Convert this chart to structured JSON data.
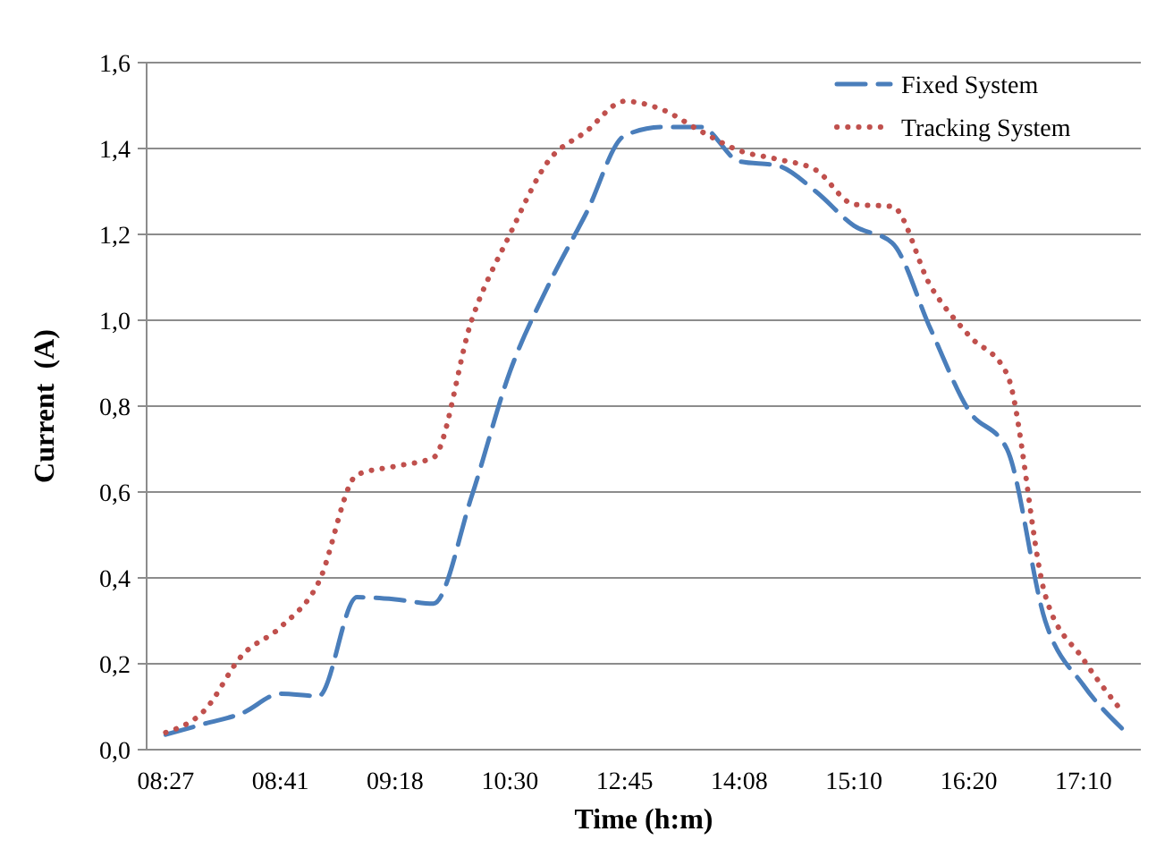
{
  "chart_data": {
    "type": "line",
    "xlabel": "Time (h:m)",
    "ylabel": "Current  (A)",
    "categories": [
      "08:27",
      null,
      null,
      "08:41",
      null,
      null,
      "09:18",
      null,
      null,
      "10:30",
      null,
      null,
      "12:45",
      null,
      null,
      "14:08",
      null,
      null,
      "15:10",
      null,
      null,
      "16:20",
      null,
      null,
      "17:10",
      null
    ],
    "series": [
      {
        "name": "Fixed System",
        "color": "#4a7ebb",
        "line_style": "dashed",
        "values": [
          0.035,
          0.06,
          0.085,
          0.13,
          0.125,
          0.355,
          0.35,
          0.34,
          0.59,
          0.88,
          1.08,
          1.25,
          1.43,
          1.45,
          1.45,
          1.37,
          1.36,
          1.3,
          1.22,
          1.18,
          0.98,
          0.79,
          0.7,
          0.3,
          0.15,
          0.05
        ]
      },
      {
        "name": "Tracking System",
        "color": "#c0504d",
        "line_style": "dotted",
        "values": [
          0.04,
          0.09,
          0.22,
          0.285,
          0.39,
          0.64,
          0.66,
          0.68,
          1.0,
          1.2,
          1.37,
          1.44,
          1.51,
          1.49,
          1.44,
          1.395,
          1.375,
          1.35,
          1.27,
          1.265,
          1.08,
          0.965,
          0.875,
          0.36,
          0.21,
          0.09
        ]
      }
    ],
    "ylim": [
      0,
      1.6
    ],
    "yticks": [
      {
        "value": 0,
        "label": "0,0"
      },
      {
        "value": 0.2,
        "label": "0,2"
      },
      {
        "value": 0.4,
        "label": "0,4"
      },
      {
        "value": 0.6,
        "label": "0,6"
      },
      {
        "value": 0.8,
        "label": "0,8"
      },
      {
        "value": 1,
        "label": "1,0"
      },
      {
        "value": 1.2,
        "label": "1,2"
      },
      {
        "value": 1.4,
        "label": "1,4"
      },
      {
        "value": 1.6,
        "label": "1,6"
      }
    ],
    "grid": "y",
    "legend": "top right"
  }
}
